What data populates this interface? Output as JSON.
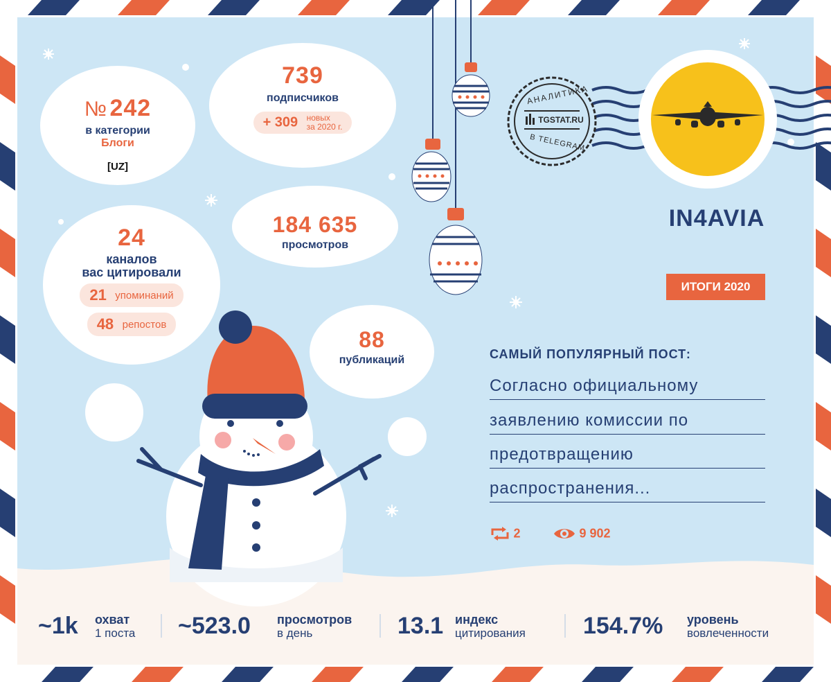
{
  "rank": {
    "prefix": "№",
    "number": "242",
    "line1": "в категории",
    "line2": "Блоги",
    "region": "[UZ]"
  },
  "subscribers": {
    "number": "739",
    "label": "подписчиков",
    "new_number": "+ 309",
    "new_line1": "новых",
    "new_line2": "за 2020 г."
  },
  "channels": {
    "number": "24",
    "line1": "каналов",
    "line2": "вас цитировали",
    "mentions_number": "21",
    "mentions_label": "упоминаний",
    "reposts_number": "48",
    "reposts_label": "репостов"
  },
  "views": {
    "number": "184 635",
    "label": "просмотров"
  },
  "publications": {
    "number": "88",
    "label": "публикаций"
  },
  "stamp": {
    "top": "АНАЛИТИКА",
    "middle": "TGSTAT.RU",
    "bottom": "В TELEGRAM"
  },
  "channel_name": "IN4AVIA",
  "results_badge": "ИТОГИ 2020",
  "popular_post": {
    "heading": "САМЫЙ ПОПУЛЯРНЫЙ ПОСТ:",
    "lines": [
      "Согласно официальному",
      "заявлению комиссии по",
      "предотвращению",
      "распространения..."
    ],
    "reposts": "2",
    "views": "9 902"
  },
  "bottom_stats": [
    {
      "value": "~1k",
      "line1": "охват",
      "line2": "1 поста"
    },
    {
      "value": "~523.0",
      "line1": "просмотров",
      "line2": "в день"
    },
    {
      "value": "13.1",
      "line1": "индекс",
      "line2": "цитирования"
    },
    {
      "value": "154.7%",
      "line1": "уровень",
      "line2": "вовлеченности"
    }
  ],
  "colors": {
    "navy": "#263f73",
    "orange": "#e8653f",
    "sky": "#cde6f5",
    "sun": "#f7c11b"
  }
}
